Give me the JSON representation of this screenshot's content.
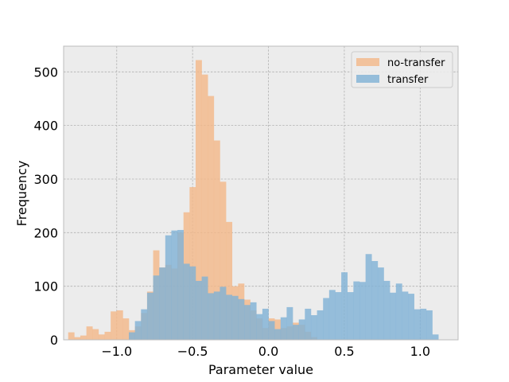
{
  "chart_data": {
    "type": "bar",
    "subtype": "overlapping-histogram",
    "title": "",
    "xlabel": "Parameter value",
    "ylabel": "Frequency",
    "xlim": [
      -1.35,
      1.25
    ],
    "ylim": [
      0,
      548
    ],
    "grid": true,
    "legend_position": "top-right",
    "bin_width": 0.0415,
    "x_ticks": [
      {
        "value": -1.0,
        "label": "−1.0"
      },
      {
        "value": -0.5,
        "label": "−0.5"
      },
      {
        "value": 0.0,
        "label": "0.0"
      },
      {
        "value": 0.5,
        "label": "0.5"
      },
      {
        "value": 1.0,
        "label": "1.0"
      }
    ],
    "y_ticks": [
      {
        "value": 0,
        "label": "0"
      },
      {
        "value": 100,
        "label": "100"
      },
      {
        "value": 200,
        "label": "200"
      },
      {
        "value": 300,
        "label": "300"
      },
      {
        "value": 400,
        "label": "400"
      },
      {
        "value": 500,
        "label": "500"
      }
    ],
    "series": [
      {
        "name": "no-transfer",
        "color": "#f4b888",
        "bin_starts": [
          -1.32,
          -1.28,
          -1.24,
          -1.2,
          -1.16,
          -1.12,
          -1.08,
          -1.04,
          -1.0,
          -0.96,
          -0.92,
          -0.88,
          -0.84,
          -0.8,
          -0.76,
          -0.72,
          -0.68,
          -0.64,
          -0.6,
          -0.56,
          -0.52,
          -0.48,
          -0.44,
          -0.4,
          -0.36,
          -0.32,
          -0.28,
          -0.24,
          -0.2,
          -0.16,
          -0.12,
          -0.08,
          -0.04,
          0.0,
          0.04,
          0.08,
          0.12,
          0.16,
          0.2,
          0.24,
          0.28
        ],
        "values": [
          14,
          5,
          8,
          25,
          20,
          10,
          15,
          53,
          55,
          40,
          18,
          25,
          50,
          90,
          167,
          135,
          140,
          133,
          200,
          238,
          285,
          522,
          495,
          455,
          372,
          295,
          220,
          100,
          105,
          75,
          55,
          40,
          22,
          40,
          38,
          22,
          25,
          32,
          28,
          15,
          5
        ]
      },
      {
        "name": "transfer",
        "color": "#7fb2d6",
        "bin_starts": [
          -0.92,
          -0.88,
          -0.84,
          -0.8,
          -0.76,
          -0.72,
          -0.68,
          -0.64,
          -0.6,
          -0.56,
          -0.52,
          -0.48,
          -0.44,
          -0.4,
          -0.36,
          -0.32,
          -0.28,
          -0.24,
          -0.2,
          -0.16,
          -0.12,
          -0.08,
          -0.04,
          0.0,
          0.04,
          0.08,
          0.12,
          0.16,
          0.2,
          0.24,
          0.28,
          0.32,
          0.36,
          0.4,
          0.44,
          0.48,
          0.52,
          0.56,
          0.6,
          0.64,
          0.68,
          0.72,
          0.76,
          0.8,
          0.84,
          0.88,
          0.92,
          0.96,
          1.0,
          1.04,
          1.08
        ],
        "values": [
          14,
          35,
          57,
          88,
          120,
          135,
          195,
          204,
          205,
          142,
          137,
          110,
          118,
          87,
          90,
          99,
          84,
          82,
          76,
          65,
          70,
          48,
          58,
          35,
          20,
          42,
          61,
          28,
          38,
          58,
          46,
          55,
          78,
          93,
          89,
          126,
          89,
          109,
          108,
          160,
          147,
          135,
          110,
          88,
          105,
          90,
          86,
          57,
          58,
          55,
          10
        ]
      }
    ]
  }
}
